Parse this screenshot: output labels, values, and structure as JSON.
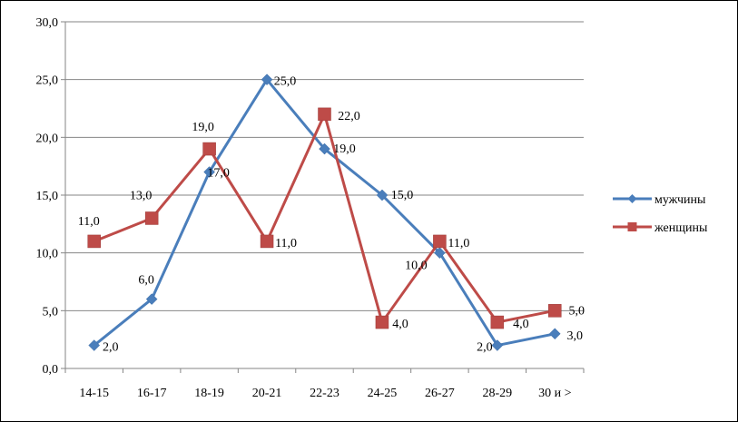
{
  "chart_data": {
    "type": "line",
    "categories": [
      "14-15",
      "16-17",
      "18-19",
      "20-21",
      "22-23",
      "24-25",
      "26-27",
      "28-29",
      "30 и >"
    ],
    "y_ticks": [
      "0,0",
      "5,0",
      "10,0",
      "15,0",
      "20,0",
      "25,0",
      "30,0"
    ],
    "ylim": [
      0,
      30
    ],
    "grid": true,
    "legend_position": "right",
    "series": [
      {
        "name": "мужчины",
        "color": "#4a7ebb",
        "marker": "diamond",
        "values": [
          2,
          6,
          17,
          25,
          19,
          15,
          10,
          2,
          3
        ],
        "labels": [
          "2,0",
          "6,0",
          "17,0",
          "25,0",
          "19,0",
          "15,0",
          "10,0",
          "2,0",
          "3,0"
        ]
      },
      {
        "name": "женщины",
        "color": "#be4b48",
        "marker": "square",
        "values": [
          11,
          13,
          19,
          11,
          22,
          4,
          11,
          4,
          5
        ],
        "labels": [
          "11,0",
          "13,0",
          "19,0",
          "11,0",
          "22,0",
          "4,0",
          "11,0",
          "4,0",
          "5,0"
        ]
      }
    ]
  }
}
